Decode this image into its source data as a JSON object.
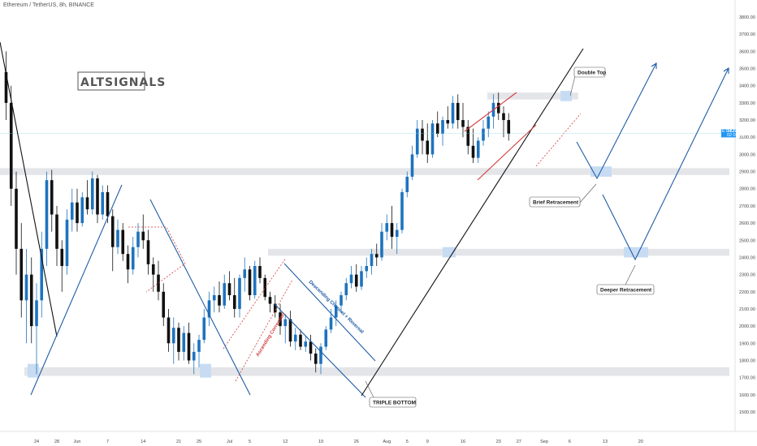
{
  "header": {
    "title": "Ethereum / TetherUS, 8h, BINANCE"
  },
  "branding": {
    "logo_text": "ALTSIGNALS"
  },
  "chart_data": {
    "type": "candlestick",
    "symbol": "Ethereum / TetherUS",
    "interval": "8h",
    "exchange": "BINANCE",
    "ylim": [
      1450,
      3900
    ],
    "y_ticks": [
      1500,
      1600,
      1700,
      1800,
      1900,
      2000,
      2100,
      2200,
      2300,
      2400,
      2500,
      2600,
      2700,
      2800,
      2900,
      3000,
      3100,
      3200,
      3300,
      3400,
      3500,
      3600,
      3700,
      3800
    ],
    "y_tick_labels": [
      "1500.00",
      "1600.00",
      "1700.00",
      "1800.00",
      "1900.00",
      "2000.00",
      "2100.00",
      "2200.00",
      "2300.00",
      "2400.00",
      "2500.00",
      "2600.00",
      "2700.00",
      "2800.00",
      "2900.00",
      "3000.00",
      "3100.00",
      "3200.00",
      "3300.00",
      "3400.00",
      "3500.00",
      "3600.00",
      "3700.00",
      "3800.00"
    ],
    "x_ticks": [
      {
        "label": "24",
        "day": 0
      },
      {
        "label": "28",
        "day": 4
      },
      {
        "label": "Jun",
        "day": 8
      },
      {
        "label": "7",
        "day": 14
      },
      {
        "label": "14",
        "day": 21
      },
      {
        "label": "21",
        "day": 28
      },
      {
        "label": "25",
        "day": 32
      },
      {
        "label": "Jul",
        "day": 38
      },
      {
        "label": "5",
        "day": 42
      },
      {
        "label": "12",
        "day": 49
      },
      {
        "label": "19",
        "day": 56
      },
      {
        "label": "26",
        "day": 63
      },
      {
        "label": "Aug",
        "day": 69
      },
      {
        "label": "5",
        "day": 73
      },
      {
        "label": "9",
        "day": 77
      },
      {
        "label": "16",
        "day": 84
      },
      {
        "label": "23",
        "day": 91
      },
      {
        "label": "27",
        "day": 95
      },
      {
        "label": "Sep",
        "day": 100
      },
      {
        "label": "6",
        "day": 105
      },
      {
        "label": "13",
        "day": 112
      },
      {
        "label": "20",
        "day": 119
      }
    ],
    "current_price": 3122.72,
    "current_price_label": "3122.72",
    "current_price_symbol": "ETHUSDT",
    "current_price_countdown": "02:05:25",
    "key_price_levels": {
      "support_low": [
        1710,
        1760
      ],
      "mid_support": [
        2410,
        2450
      ],
      "brief_retracement_zone": [
        2880,
        2920
      ],
      "resistance_top": [
        3320,
        3360
      ]
    },
    "ohlc_daily": [
      {
        "day": -6,
        "o": 3480,
        "h": 3600,
        "l": 3200,
        "c": 3300
      },
      {
        "day": -5,
        "o": 3300,
        "h": 3400,
        "l": 2700,
        "c": 2800
      },
      {
        "day": -4,
        "o": 2800,
        "h": 2900,
        "l": 2300,
        "c": 2450
      },
      {
        "day": -3,
        "o": 2450,
        "h": 2600,
        "l": 2050,
        "c": 2150
      },
      {
        "day": -2,
        "o": 2150,
        "h": 2450,
        "l": 1900,
        "c": 2300
      },
      {
        "day": -1,
        "o": 2300,
        "h": 2400,
        "l": 1900,
        "c": 2000
      },
      {
        "day": 0,
        "o": 2000,
        "h": 2250,
        "l": 1720,
        "c": 2150
      },
      {
        "day": 1,
        "o": 2150,
        "h": 2550,
        "l": 2050,
        "c": 2450
      },
      {
        "day": 2,
        "o": 2450,
        "h": 2900,
        "l": 2350,
        "c": 2850
      },
      {
        "day": 3,
        "o": 2850,
        "h": 2910,
        "l": 2550,
        "c": 2650
      },
      {
        "day": 4,
        "o": 2650,
        "h": 2700,
        "l": 2350,
        "c": 2450
      },
      {
        "day": 5,
        "o": 2450,
        "h": 2500,
        "l": 2200,
        "c": 2350
      },
      {
        "day": 6,
        "o": 2350,
        "h": 2680,
        "l": 2300,
        "c": 2620
      },
      {
        "day": 7,
        "o": 2620,
        "h": 2800,
        "l": 2550,
        "c": 2720
      },
      {
        "day": 8,
        "o": 2720,
        "h": 2800,
        "l": 2550,
        "c": 2600
      },
      {
        "day": 9,
        "o": 2600,
        "h": 2780,
        "l": 2580,
        "c": 2750
      },
      {
        "day": 10,
        "o": 2750,
        "h": 2850,
        "l": 2650,
        "c": 2680
      },
      {
        "day": 11,
        "o": 2680,
        "h": 2900,
        "l": 2650,
        "c": 2860
      },
      {
        "day": 12,
        "o": 2860,
        "h": 2880,
        "l": 2600,
        "c": 2650
      },
      {
        "day": 13,
        "o": 2650,
        "h": 2820,
        "l": 2620,
        "c": 2780
      },
      {
        "day": 14,
        "o": 2780,
        "h": 2820,
        "l": 2600,
        "c": 2640
      },
      {
        "day": 15,
        "o": 2640,
        "h": 2680,
        "l": 2320,
        "c": 2460
      },
      {
        "day": 16,
        "o": 2460,
        "h": 2620,
        "l": 2420,
        "c": 2560
      },
      {
        "day": 17,
        "o": 2560,
        "h": 2600,
        "l": 2380,
        "c": 2420
      },
      {
        "day": 18,
        "o": 2420,
        "h": 2470,
        "l": 2250,
        "c": 2330
      },
      {
        "day": 19,
        "o": 2330,
        "h": 2520,
        "l": 2300,
        "c": 2460
      },
      {
        "day": 20,
        "o": 2460,
        "h": 2600,
        "l": 2400,
        "c": 2550
      },
      {
        "day": 21,
        "o": 2550,
        "h": 2650,
        "l": 2450,
        "c": 2500
      },
      {
        "day": 22,
        "o": 2500,
        "h": 2560,
        "l": 2300,
        "c": 2360
      },
      {
        "day": 23,
        "o": 2360,
        "h": 2400,
        "l": 2200,
        "c": 2300
      },
      {
        "day": 24,
        "o": 2300,
        "h": 2380,
        "l": 2150,
        "c": 2200
      },
      {
        "day": 25,
        "o": 2200,
        "h": 2250,
        "l": 2000,
        "c": 2050
      },
      {
        "day": 26,
        "o": 2050,
        "h": 2100,
        "l": 1850,
        "c": 1900
      },
      {
        "day": 27,
        "o": 1900,
        "h": 2050,
        "l": 1780,
        "c": 1990
      },
      {
        "day": 28,
        "o": 1990,
        "h": 2020,
        "l": 1800,
        "c": 1850
      },
      {
        "day": 29,
        "o": 1850,
        "h": 2000,
        "l": 1800,
        "c": 1960
      },
      {
        "day": 30,
        "o": 1960,
        "h": 2020,
        "l": 1780,
        "c": 1800
      },
      {
        "day": 31,
        "o": 1800,
        "h": 1900,
        "l": 1720,
        "c": 1850
      },
      {
        "day": 32,
        "o": 1850,
        "h": 1950,
        "l": 1760,
        "c": 1920
      },
      {
        "day": 33,
        "o": 1920,
        "h": 2100,
        "l": 1900,
        "c": 2050
      },
      {
        "day": 34,
        "o": 2050,
        "h": 2200,
        "l": 2000,
        "c": 2150
      },
      {
        "day": 35,
        "o": 2150,
        "h": 2230,
        "l": 2080,
        "c": 2180
      },
      {
        "day": 36,
        "o": 2180,
        "h": 2260,
        "l": 2080,
        "c": 2120
      },
      {
        "day": 37,
        "o": 2120,
        "h": 2300,
        "l": 2100,
        "c": 2250
      },
      {
        "day": 38,
        "o": 2250,
        "h": 2320,
        "l": 2150,
        "c": 2180
      },
      {
        "day": 39,
        "o": 2180,
        "h": 2280,
        "l": 2050,
        "c": 2100
      },
      {
        "day": 40,
        "o": 2100,
        "h": 2300,
        "l": 2050,
        "c": 2280
      },
      {
        "day": 41,
        "o": 2280,
        "h": 2400,
        "l": 2200,
        "c": 2330
      },
      {
        "day": 42,
        "o": 2330,
        "h": 2350,
        "l": 2150,
        "c": 2180
      },
      {
        "day": 43,
        "o": 2180,
        "h": 2380,
        "l": 2160,
        "c": 2350
      },
      {
        "day": 44,
        "o": 2350,
        "h": 2400,
        "l": 2250,
        "c": 2280
      },
      {
        "day": 45,
        "o": 2280,
        "h": 2300,
        "l": 2150,
        "c": 2170
      },
      {
        "day": 46,
        "o": 2170,
        "h": 2200,
        "l": 2080,
        "c": 2130
      },
      {
        "day": 47,
        "o": 2130,
        "h": 2180,
        "l": 2050,
        "c": 2080
      },
      {
        "day": 48,
        "o": 2080,
        "h": 2130,
        "l": 1950,
        "c": 2000
      },
      {
        "day": 49,
        "o": 2000,
        "h": 2070,
        "l": 1900,
        "c": 2040
      },
      {
        "day": 50,
        "o": 2040,
        "h": 2090,
        "l": 1880,
        "c": 1910
      },
      {
        "day": 51,
        "o": 1910,
        "h": 1990,
        "l": 1860,
        "c": 1950
      },
      {
        "day": 52,
        "o": 1950,
        "h": 1980,
        "l": 1860,
        "c": 1880
      },
      {
        "day": 53,
        "o": 1880,
        "h": 1940,
        "l": 1850,
        "c": 1910
      },
      {
        "day": 54,
        "o": 1910,
        "h": 1950,
        "l": 1800,
        "c": 1840
      },
      {
        "day": 55,
        "o": 1840,
        "h": 1870,
        "l": 1730,
        "c": 1780
      },
      {
        "day": 56,
        "o": 1780,
        "h": 1900,
        "l": 1720,
        "c": 1880
      },
      {
        "day": 57,
        "o": 1880,
        "h": 2000,
        "l": 1860,
        "c": 1980
      },
      {
        "day": 58,
        "o": 1980,
        "h": 2100,
        "l": 1960,
        "c": 2050
      },
      {
        "day": 59,
        "o": 2050,
        "h": 2150,
        "l": 2000,
        "c": 2120
      },
      {
        "day": 60,
        "o": 2120,
        "h": 2200,
        "l": 2080,
        "c": 2180
      },
      {
        "day": 61,
        "o": 2180,
        "h": 2280,
        "l": 2150,
        "c": 2250
      },
      {
        "day": 62,
        "o": 2250,
        "h": 2350,
        "l": 2220,
        "c": 2300
      },
      {
        "day": 63,
        "o": 2300,
        "h": 2360,
        "l": 2200,
        "c": 2230
      },
      {
        "day": 64,
        "o": 2230,
        "h": 2350,
        "l": 2210,
        "c": 2320
      },
      {
        "day": 65,
        "o": 2320,
        "h": 2400,
        "l": 2280,
        "c": 2350
      },
      {
        "day": 66,
        "o": 2350,
        "h": 2450,
        "l": 2300,
        "c": 2420
      },
      {
        "day": 67,
        "o": 2420,
        "h": 2480,
        "l": 2350,
        "c": 2400
      },
      {
        "day": 68,
        "o": 2400,
        "h": 2600,
        "l": 2380,
        "c": 2550
      },
      {
        "day": 69,
        "o": 2550,
        "h": 2650,
        "l": 2500,
        "c": 2600
      },
      {
        "day": 70,
        "o": 2600,
        "h": 2700,
        "l": 2450,
        "c": 2520
      },
      {
        "day": 71,
        "o": 2520,
        "h": 2600,
        "l": 2420,
        "c": 2560
      },
      {
        "day": 72,
        "o": 2560,
        "h": 2800,
        "l": 2540,
        "c": 2780
      },
      {
        "day": 73,
        "o": 2780,
        "h": 2900,
        "l": 2750,
        "c": 2870
      },
      {
        "day": 74,
        "o": 2870,
        "h": 3050,
        "l": 2850,
        "c": 3000
      },
      {
        "day": 75,
        "o": 3000,
        "h": 3200,
        "l": 2980,
        "c": 3150
      },
      {
        "day": 76,
        "o": 3150,
        "h": 3200,
        "l": 3000,
        "c": 3080
      },
      {
        "day": 77,
        "o": 3080,
        "h": 3180,
        "l": 2950,
        "c": 3000
      },
      {
        "day": 78,
        "o": 3000,
        "h": 3200,
        "l": 2980,
        "c": 3180
      },
      {
        "day": 79,
        "o": 3180,
        "h": 3250,
        "l": 3100,
        "c": 3120
      },
      {
        "day": 80,
        "o": 3120,
        "h": 3220,
        "l": 3050,
        "c": 3200
      },
      {
        "day": 81,
        "o": 3200,
        "h": 3280,
        "l": 3150,
        "c": 3180
      },
      {
        "day": 82,
        "o": 3180,
        "h": 3340,
        "l": 3150,
        "c": 3300
      },
      {
        "day": 83,
        "o": 3300,
        "h": 3350,
        "l": 3150,
        "c": 3200
      },
      {
        "day": 84,
        "o": 3200,
        "h": 3300,
        "l": 3100,
        "c": 3160
      },
      {
        "day": 85,
        "o": 3160,
        "h": 3200,
        "l": 3000,
        "c": 3050
      },
      {
        "day": 86,
        "o": 3050,
        "h": 3150,
        "l": 2950,
        "c": 2980
      },
      {
        "day": 87,
        "o": 2980,
        "h": 3100,
        "l": 2950,
        "c": 3080
      },
      {
        "day": 88,
        "o": 3080,
        "h": 3200,
        "l": 3050,
        "c": 3150
      },
      {
        "day": 89,
        "o": 3150,
        "h": 3250,
        "l": 3100,
        "c": 3220
      },
      {
        "day": 90,
        "o": 3220,
        "h": 3350,
        "l": 3150,
        "c": 3300
      },
      {
        "day": 91,
        "o": 3300,
        "h": 3360,
        "l": 3200,
        "c": 3240
      },
      {
        "day": 92,
        "o": 3240,
        "h": 3280,
        "l": 3100,
        "c": 3200
      },
      {
        "day": 93,
        "o": 3200,
        "h": 3240,
        "l": 3080,
        "c": 3120
      }
    ]
  },
  "annotations": {
    "double_top_label": "Double Top",
    "brief_retracement_label": "Brief Retracement",
    "deeper_retracement_label": "Deeper Retracement",
    "triple_bottom_label": "TRIPLE BOTTOM",
    "descending_channel_label": "Descending Channel + Reversal",
    "ascending_correction_label": "Ascending Correction"
  },
  "colors": {
    "bull_candle": "#1e73be",
    "bear_candle": "#111111",
    "zone_grey": "#e3e5e8",
    "zone_blue": "#c7dcf3",
    "trend_blue": "#1e5ca6",
    "trend_black": "#111111",
    "trend_red": "#d43b3b",
    "price_label_bg": "#2196f3",
    "axis_text": "#444444",
    "current_price_line": "#7fd3e6"
  }
}
